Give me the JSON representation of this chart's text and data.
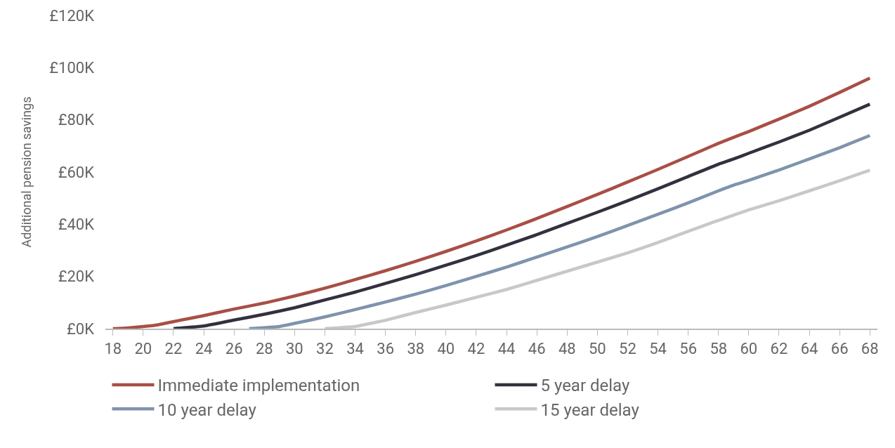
{
  "chart_data": {
    "type": "line",
    "ylabel": "Additional pension savings",
    "series": [
      {
        "name": "Immediate implementation",
        "color": "#a84f45",
        "x": [
          18,
          19,
          20,
          21,
          22,
          24,
          26,
          28,
          30,
          32,
          34,
          36,
          38,
          40,
          42,
          44,
          46,
          48,
          50,
          52,
          54,
          56,
          58,
          59,
          60,
          62,
          64,
          66,
          68
        ],
        "values": [
          0,
          0.3,
          0.8,
          1.5,
          2.7,
          5,
          7.5,
          9.8,
          12.5,
          15.5,
          18.8,
          22.2,
          25.8,
          29.6,
          33.6,
          37.8,
          42.2,
          46.8,
          51.4,
          56.2,
          61,
          66,
          71,
          73.3,
          75.5,
          80.3,
          85.2,
          90.5,
          96
        ]
      },
      {
        "name": "5 year delay",
        "color": "#33313f",
        "x": [
          22,
          24,
          26,
          28,
          30,
          32,
          34,
          36,
          38,
          40,
          42,
          44,
          46,
          48,
          50,
          52,
          54,
          56,
          58,
          59,
          60,
          62,
          64,
          66,
          68
        ],
        "values": [
          0,
          1,
          3.3,
          5.5,
          8,
          11,
          14,
          17.3,
          20.7,
          24.3,
          28,
          32,
          36,
          40.3,
          44.6,
          49,
          53.6,
          58.3,
          63,
          65,
          67.2,
          71.5,
          76,
          81,
          86
        ]
      },
      {
        "name": "10 year delay",
        "color": "#7f93ad",
        "x": [
          27,
          29,
          30,
          32,
          34,
          36,
          38,
          40,
          42,
          44,
          46,
          48,
          50,
          52,
          54,
          56,
          58,
          59,
          60,
          62,
          64,
          66,
          68
        ],
        "values": [
          0,
          0.8,
          2,
          4.5,
          7.3,
          10.2,
          13.2,
          16.5,
          20,
          23.6,
          27.4,
          31.3,
          35.3,
          39.5,
          43.8,
          48.2,
          52.8,
          55,
          56.8,
          60.8,
          65,
          69.3,
          74
        ]
      },
      {
        "name": "15 year delay",
        "color": "#c8c8c8",
        "x": [
          32,
          34,
          35,
          36,
          38,
          40,
          42,
          44,
          46,
          48,
          50,
          52,
          54,
          56,
          58,
          59,
          60,
          62,
          64,
          66,
          68
        ],
        "values": [
          0,
          0.8,
          2,
          3.2,
          6.2,
          9,
          12,
          15,
          18.5,
          22,
          25.5,
          29,
          33,
          37.3,
          41.5,
          43.5,
          45.5,
          49,
          52.8,
          56.7,
          60.7
        ]
      }
    ],
    "xlim": [
      17.5,
      68.5
    ],
    "xticks": [
      18,
      20,
      22,
      24,
      26,
      28,
      30,
      32,
      34,
      36,
      38,
      40,
      42,
      44,
      46,
      48,
      50,
      52,
      54,
      56,
      58,
      60,
      62,
      64,
      66,
      68
    ],
    "ylim": [
      0,
      120
    ],
    "yticks": [
      {
        "value": 0,
        "label": "£0K"
      },
      {
        "value": 20,
        "label": "£20K"
      },
      {
        "value": 40,
        "label": "£40K"
      },
      {
        "value": 60,
        "label": "£60K"
      },
      {
        "value": 80,
        "label": "£80K"
      },
      {
        "value": 100,
        "label": "£100K"
      },
      {
        "value": 120,
        "label": "£120K"
      }
    ],
    "grid": false,
    "legend": "bottom",
    "marker": "none",
    "line_style": "solid"
  }
}
